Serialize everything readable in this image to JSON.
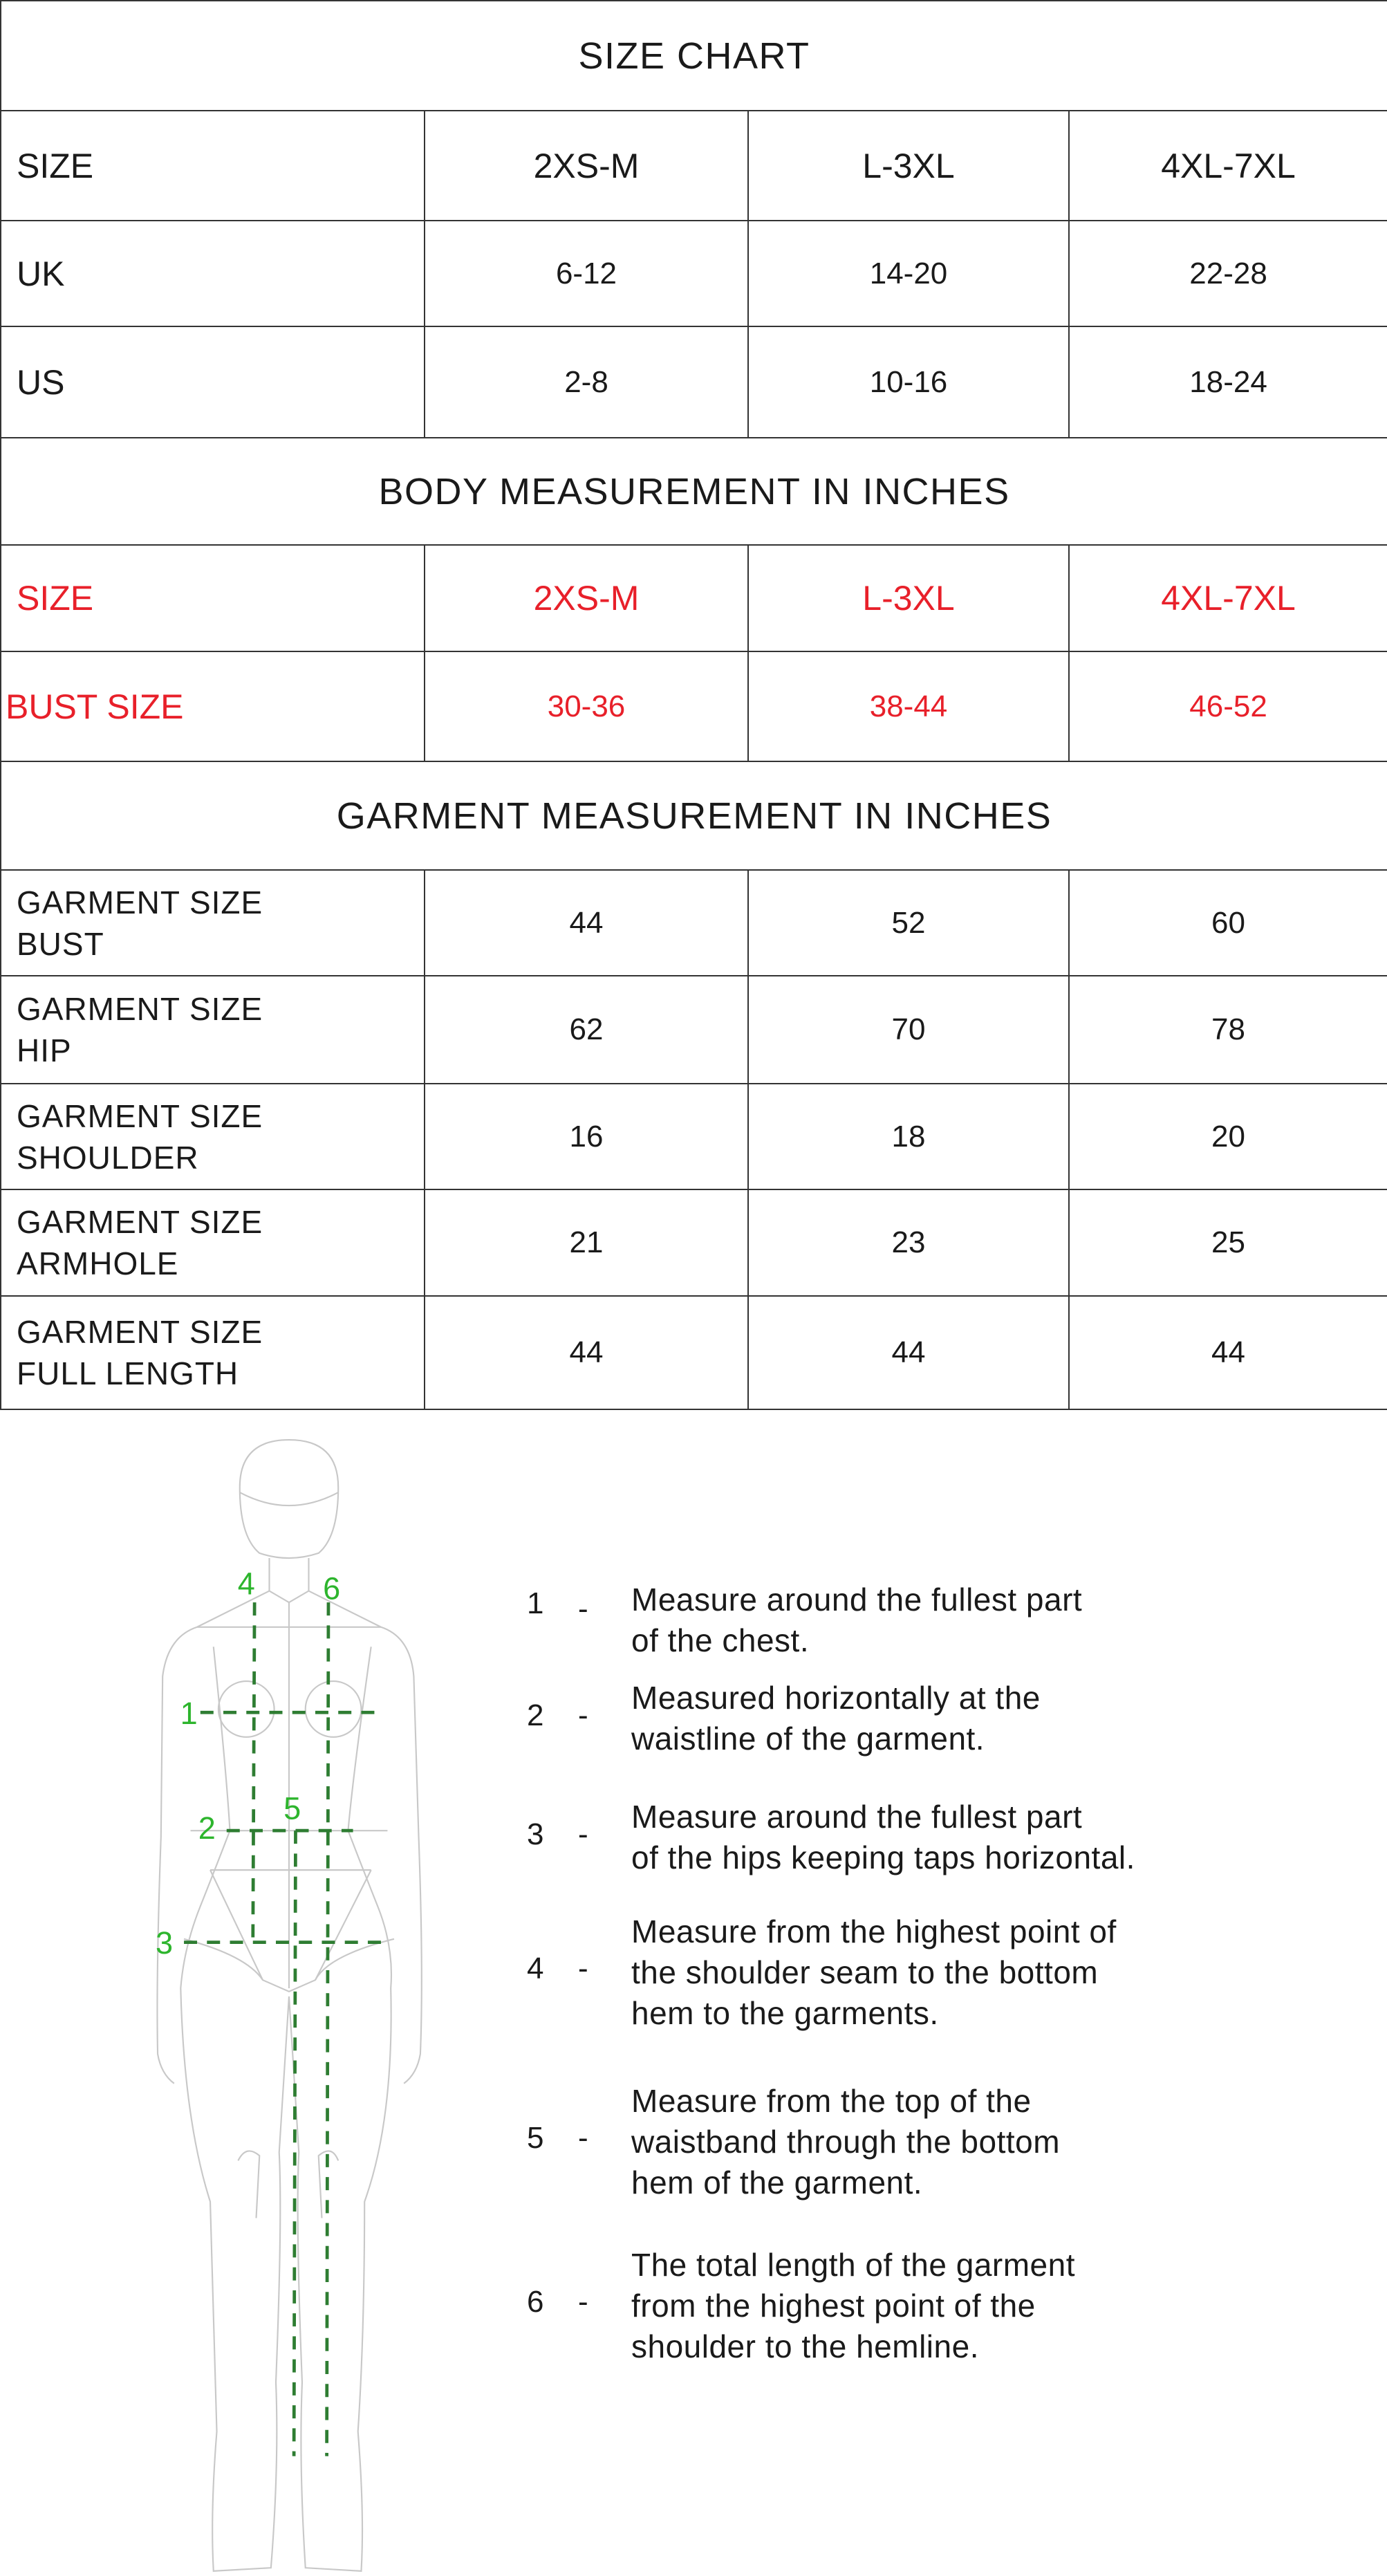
{
  "size_chart": {
    "title": "SIZE CHART",
    "header": {
      "label": "SIZE",
      "cols": [
        "2XS-M",
        "L-3XL",
        "4XL-7XL"
      ]
    },
    "rows": [
      {
        "label": "UK",
        "values": [
          "6-12",
          "14-20",
          "22-28"
        ]
      },
      {
        "label": "US",
        "values": [
          "2-8",
          "10-16",
          "18-24"
        ]
      }
    ]
  },
  "body_measurement": {
    "title": "BODY MEASUREMENT IN INCHES",
    "header": {
      "label": "SIZE",
      "cols": [
        "2XS-M",
        "L-3XL",
        "4XL-7XL"
      ]
    },
    "rows": [
      {
        "label": "BUST SIZE",
        "values": [
          "30-36",
          "38-44",
          "46-52"
        ]
      }
    ],
    "accent_color": "#e8202a"
  },
  "garment_measurement": {
    "title": "GARMENT MEASUREMENT IN INCHES",
    "rows": [
      {
        "label": "GARMENT SIZE\nBUST",
        "values": [
          "44",
          "52",
          "60"
        ]
      },
      {
        "label": "GARMENT SIZE\nHIP",
        "values": [
          "62",
          "70",
          "78"
        ]
      },
      {
        "label": "GARMENT SIZE\nSHOULDER",
        "values": [
          "16",
          "18",
          "20"
        ]
      },
      {
        "label": "GARMENT SIZE\nARMHOLE",
        "values": [
          "21",
          "23",
          "25"
        ]
      },
      {
        "label": "GARMENT SIZE\nFULL LENGTH",
        "values": [
          "44",
          "44",
          "44"
        ]
      }
    ]
  },
  "figure": {
    "markers": [
      "1",
      "2",
      "3",
      "4",
      "5",
      "6"
    ],
    "marker_color": "#2db52d",
    "line_color": "#2e7d32"
  },
  "instructions": [
    {
      "num": "1",
      "dash": "-",
      "text": "Measure around the fullest part\nof the chest."
    },
    {
      "num": "2",
      "dash": "-",
      "text": "Measured horizontally at the\nwaistline of the garment."
    },
    {
      "num": "3",
      "dash": "-",
      "text": "Measure around the fullest part\nof the hips keeping taps horizontal."
    },
    {
      "num": "4",
      "dash": "-",
      "text": "Measure from the highest point of\nthe shoulder seam to the bottom\nhem to the garments."
    },
    {
      "num": "5",
      "dash": "-",
      "text": "Measure from the top of the\nwaistband through the bottom\nhem of the garment."
    },
    {
      "num": "6",
      "dash": "-",
      "text": "The total length of the garment\nfrom the highest point of the\nshoulder to the hemline."
    }
  ]
}
